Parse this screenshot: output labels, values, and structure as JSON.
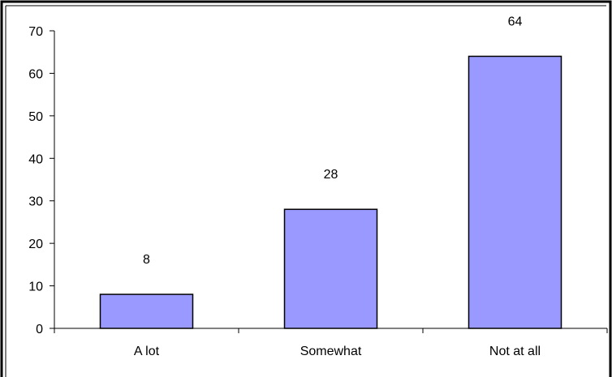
{
  "chart_data": {
    "type": "bar",
    "title": "",
    "xlabel": "",
    "ylabel": "",
    "categories": [
      "A lot",
      "Somewhat",
      "Not at all"
    ],
    "values": [
      8,
      28,
      64
    ],
    "data_labels": [
      "8",
      "28",
      "64"
    ],
    "ylim": [
      0,
      70
    ],
    "yticks": [
      0,
      10,
      20,
      30,
      40,
      50,
      60,
      70
    ],
    "ytick_labels": [
      "0",
      "10",
      "20",
      "30",
      "40",
      "50",
      "60",
      "70"
    ],
    "grid": false,
    "legend": "none",
    "colors": {
      "bar_fill": "#9999ff",
      "bar_stroke": "#000000",
      "axis": "#000000",
      "frame": "#000000",
      "text": "#000000",
      "background": "#ffffff"
    }
  }
}
